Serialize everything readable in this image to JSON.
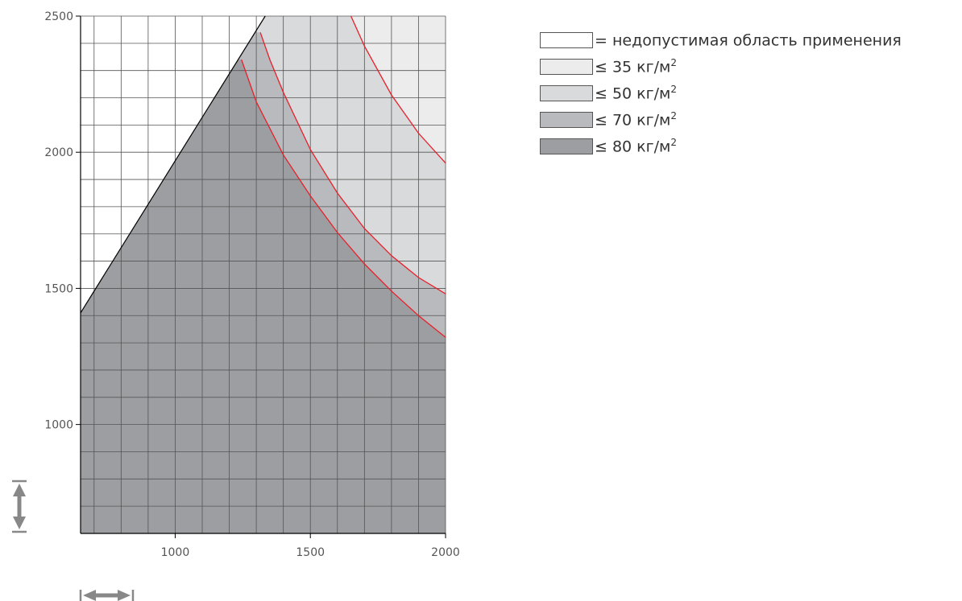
{
  "chart_data": {
    "type": "area",
    "xlim": [
      650,
      2000
    ],
    "ylim": [
      600,
      2500
    ],
    "xticks": [
      1000,
      1500,
      2000
    ],
    "yticks": [
      1000,
      1500,
      2000,
      2500
    ],
    "grid": true,
    "grid_minor_step": 100,
    "legend_position": "top-right",
    "boundary_line": {
      "x": [
        650,
        1333
      ],
      "y": [
        1410,
        2500
      ]
    },
    "zones": [
      {
        "name": "= недопустимая область применения",
        "color": "#ffffff"
      },
      {
        "name": "≤ 35 кг/м²",
        "color": "#ececed"
      },
      {
        "name": "≤ 50 кг/м²",
        "color": "#d9dadc"
      },
      {
        "name": "≤ 70 кг/м²",
        "color": "#b9babe"
      },
      {
        "name": "≤ 80 кг/м²",
        "color": "#9c9ea2"
      }
    ],
    "red_curves": [
      {
        "x": [
          1650,
          1700,
          1800,
          1900,
          2000
        ],
        "y": [
          2500,
          2390,
          2210,
          2070,
          1960
        ]
      },
      {
        "x": [
          1315,
          1350,
          1400,
          1500,
          1600,
          1700,
          1800,
          1900,
          2000
        ],
        "y": [
          2440,
          2340,
          2220,
          2010,
          1850,
          1720,
          1620,
          1540,
          1480
        ]
      },
      {
        "x": [
          1245,
          1300,
          1400,
          1500,
          1600,
          1700,
          1800,
          1900,
          2000
        ],
        "y": [
          2340,
          2185,
          1990,
          1840,
          1705,
          1590,
          1490,
          1400,
          1320
        ]
      }
    ],
    "curve_color": "#e8202a",
    "axis_color": "#000000"
  },
  "legend": [
    {
      "text": "= недопустимая область применения",
      "sup": "",
      "color": "#ffffff"
    },
    {
      "text": "≤ 35 кг/м",
      "sup": "2",
      "color": "#ececed"
    },
    {
      "text": "≤ 50 кг/м",
      "sup": "2",
      "color": "#d9dadc"
    },
    {
      "text": "≤ 70 кг/м",
      "sup": "2",
      "color": "#b9babe"
    },
    {
      "text": "≤ 80 кг/м",
      "sup": "2",
      "color": "#9c9ea2"
    }
  ],
  "icons": {
    "vertical": "vertical-dimension-arrow-icon",
    "horizontal": "horizontal-dimension-arrow-icon"
  }
}
